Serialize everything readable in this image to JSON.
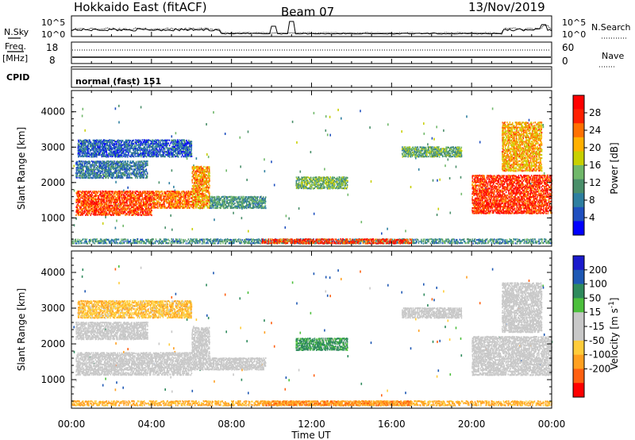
{
  "header": {
    "station": "Hokkaido East (fitACF)",
    "beam": "Beam 07",
    "date": "13/Nov/2019"
  },
  "top_panels": {
    "nsky_label": "N.Sky",
    "nsearch_label": "N.Search",
    "noise_tick_high": "10^5",
    "noise_tick_low": "10^0",
    "freq_label": "Freq.",
    "freq_unit": "[MHz]",
    "freq_ticks": [
      "18",
      "8"
    ],
    "nave_label": "Nave",
    "nave_ticks": [
      "60",
      "0"
    ],
    "cpid_label": "CPID",
    "cpid_value": "normal (fast) 151"
  },
  "chart_data": [
    {
      "type": "heatmap",
      "title": "",
      "xlabel": "Time UT",
      "ylabel": "Slant Range [km]",
      "x_ticks": [
        "00:00",
        "04:00",
        "08:00",
        "12:00",
        "16:00",
        "20:00",
        "00:00"
      ],
      "x_range_hours": [
        0,
        24
      ],
      "y_ticks": [
        1000,
        2000,
        3000,
        4000
      ],
      "ylim": [
        200,
        4600
      ],
      "colorbar": {
        "label": "Power [dB]",
        "ticks": [
          "4",
          "8",
          "12",
          "16",
          "20",
          "24",
          "28"
        ],
        "colors": [
          "#0000ff",
          "#1f4fbf",
          "#2e7fa0",
          "#4a8f6a",
          "#70b86a",
          "#c8d000",
          "#ffb000",
          "#ff7000",
          "#ff2000",
          "#ff0000"
        ]
      },
      "regions": [
        {
          "t0": 0.2,
          "t1": 4.0,
          "r0": 1050,
          "r1": 1750,
          "v": 26
        },
        {
          "t0": 4.0,
          "t1": 6.0,
          "r0": 1250,
          "r1": 1750,
          "v": 24
        },
        {
          "t0": 6.0,
          "t1": 6.9,
          "r0": 1250,
          "r1": 2450,
          "v": 22
        },
        {
          "t0": 6.9,
          "t1": 9.7,
          "r0": 1250,
          "r1": 1600,
          "v": 11
        },
        {
          "t0": 0.2,
          "t1": 3.8,
          "r0": 2100,
          "r1": 2600,
          "v": 8
        },
        {
          "t0": 0.3,
          "t1": 6.0,
          "r0": 2700,
          "r1": 3200,
          "v": 6
        },
        {
          "t0": 11.2,
          "t1": 13.8,
          "r0": 1800,
          "r1": 2150,
          "v": 14
        },
        {
          "t0": 16.5,
          "t1": 19.5,
          "r0": 2700,
          "r1": 3000,
          "v": 13
        },
        {
          "t0": 20.0,
          "t1": 24.0,
          "r0": 1100,
          "r1": 2200,
          "v": 27
        },
        {
          "t0": 21.5,
          "t1": 23.5,
          "r0": 2300,
          "r1": 3700,
          "v": 21
        },
        {
          "t0": 0.0,
          "t1": 24.0,
          "r0": 250,
          "r1": 400,
          "v": 10
        },
        {
          "t0": 9.5,
          "t1": 17.0,
          "r0": 250,
          "r1": 400,
          "v": 27
        }
      ]
    },
    {
      "type": "heatmap",
      "title": "",
      "xlabel": "Time UT",
      "ylabel": "Slant Range [km]",
      "x_ticks": [
        "00:00",
        "04:00",
        "08:00",
        "12:00",
        "16:00",
        "20:00",
        "00:00"
      ],
      "x_range_hours": [
        0,
        24
      ],
      "y_ticks": [
        1000,
        2000,
        3000,
        4000
      ],
      "ylim": [
        200,
        4600
      ],
      "colorbar": {
        "label": "Velocity [m s^-1]",
        "ticks": [
          "200",
          "100",
          "50",
          "15",
          "-15",
          "-50",
          "-100",
          "-200"
        ],
        "colors": [
          "#1a1acc",
          "#1e58b4",
          "#2e8a5c",
          "#4cbf3c",
          "#c8c8c8",
          "#c8c8c8",
          "#ffcc3a",
          "#ffa020",
          "#ff6010",
          "#ff0000"
        ]
      },
      "regions": [
        {
          "t0": 0.2,
          "t1": 6.0,
          "r0": 1100,
          "r1": 1750,
          "v": 0
        },
        {
          "t0": 6.0,
          "t1": 6.9,
          "r0": 1250,
          "r1": 2450,
          "v": 0
        },
        {
          "t0": 6.9,
          "t1": 9.7,
          "r0": 1250,
          "r1": 1600,
          "v": 0
        },
        {
          "t0": 0.2,
          "t1": 3.8,
          "r0": 2100,
          "r1": 2600,
          "v": 0
        },
        {
          "t0": 0.3,
          "t1": 6.0,
          "r0": 2700,
          "r1": 3200,
          "v": -40
        },
        {
          "t0": 11.2,
          "t1": 13.8,
          "r0": 1800,
          "r1": 2150,
          "v": 40
        },
        {
          "t0": 16.5,
          "t1": 19.5,
          "r0": 2700,
          "r1": 3000,
          "v": 0
        },
        {
          "t0": 20.0,
          "t1": 24.0,
          "r0": 1100,
          "r1": 2200,
          "v": 0
        },
        {
          "t0": 21.5,
          "t1": 23.5,
          "r0": 2300,
          "r1": 3700,
          "v": 0
        },
        {
          "t0": 0.0,
          "t1": 24.0,
          "r0": 250,
          "r1": 400,
          "v": -60
        },
        {
          "t0": 9.5,
          "t1": 17.0,
          "r0": 250,
          "r1": 400,
          "v": -90
        }
      ]
    }
  ]
}
